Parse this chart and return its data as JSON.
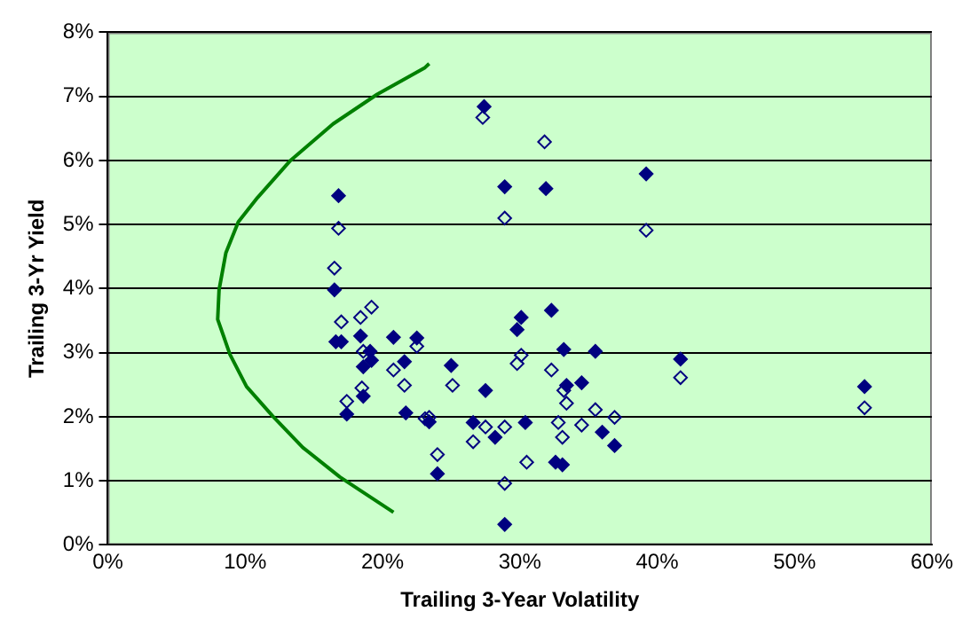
{
  "chart_data": {
    "type": "scatter",
    "xlabel": "Trailing 3-Year Volatility",
    "ylabel": "Trailing 3-Yr Yield",
    "xlim": [
      0,
      60
    ],
    "ylim": [
      0,
      8
    ],
    "xticks": [
      {
        "value": 0,
        "label": "0%"
      },
      {
        "value": 10,
        "label": "10%"
      },
      {
        "value": 20,
        "label": "20%"
      },
      {
        "value": 30,
        "label": "30%"
      },
      {
        "value": 40,
        "label": "40%"
      },
      {
        "value": 50,
        "label": "50%"
      },
      {
        "value": 60,
        "label": "60%"
      }
    ],
    "yticks": [
      {
        "value": 0,
        "label": "0%"
      },
      {
        "value": 1,
        "label": "1%"
      },
      {
        "value": 2,
        "label": "2%"
      },
      {
        "value": 3,
        "label": "3%"
      },
      {
        "value": 4,
        "label": "4%"
      },
      {
        "value": 5,
        "label": "5%"
      },
      {
        "value": 6,
        "label": "6%"
      },
      {
        "value": 7,
        "label": "7%"
      },
      {
        "value": 8,
        "label": "8%"
      }
    ],
    "grid": "y",
    "legend": false,
    "marker": "diamond",
    "series": [
      {
        "color": "#000080",
        "x": [
          16.8,
          16.5,
          16.6,
          17.0,
          18.4,
          19.1,
          18.6,
          19.2,
          18.6,
          17.4,
          20.8,
          21.6,
          21.7,
          22.5,
          27.4,
          28.9,
          31.9,
          39.2,
          32.3,
          30.1,
          29.8,
          33.2,
          35.5,
          41.7,
          25.0,
          27.5,
          33.4,
          34.5,
          23.4,
          26.6,
          28.2,
          30.4,
          36.0,
          36.9,
          24.0,
          32.6,
          33.1,
          28.9,
          55.1
        ],
        "values": [
          5.45,
          3.98,
          3.17,
          3.17,
          3.26,
          3.02,
          2.78,
          2.88,
          2.32,
          2.04,
          3.24,
          2.86,
          2.06,
          3.23,
          6.84,
          5.59,
          5.56,
          5.79,
          3.66,
          3.55,
          3.36,
          3.05,
          3.02,
          2.9,
          2.8,
          2.41,
          2.49,
          2.53,
          1.92,
          1.91,
          1.68,
          1.91,
          1.76,
          1.55,
          1.11,
          1.29,
          1.25,
          0.32,
          2.47
        ]
      },
      {
        "color": "#000080",
        "x": [
          16.8,
          16.5,
          17.0,
          18.4,
          19.2,
          18.6,
          20.8,
          21.6,
          18.5,
          17.4,
          22.5,
          23.1,
          27.3,
          31.8,
          28.9,
          39.2,
          30.1,
          29.8,
          32.3,
          41.7,
          25.1,
          33.2,
          33.4,
          35.5,
          36.9,
          23.4,
          27.5,
          28.9,
          32.8,
          34.5,
          33.1,
          26.6,
          24.0,
          30.5,
          28.9,
          55.1
        ],
        "values": [
          4.94,
          4.32,
          3.48,
          3.55,
          3.71,
          3.02,
          2.73,
          2.49,
          2.45,
          2.24,
          3.1,
          1.97,
          6.67,
          6.29,
          5.1,
          4.91,
          2.96,
          2.83,
          2.73,
          2.61,
          2.49,
          2.41,
          2.21,
          2.11,
          1.99,
          1.99,
          1.84,
          1.84,
          1.91,
          1.87,
          1.68,
          1.61,
          1.41,
          1.29,
          0.96,
          2.14
        ]
      },
      {
        "type": "line",
        "marker": "none",
        "color": "#008000",
        "x": [
          23.4,
          23.1,
          19.6,
          16.4,
          13.3,
          10.9,
          9.5,
          8.6,
          8.1,
          8.0,
          8.9,
          10.1,
          12.0,
          14.2,
          16.9,
          20.8
        ],
        "values": [
          7.51,
          7.45,
          7.03,
          6.57,
          6.0,
          5.42,
          5.04,
          4.56,
          3.98,
          3.52,
          2.97,
          2.47,
          2.01,
          1.52,
          1.06,
          0.51
        ]
      }
    ]
  }
}
